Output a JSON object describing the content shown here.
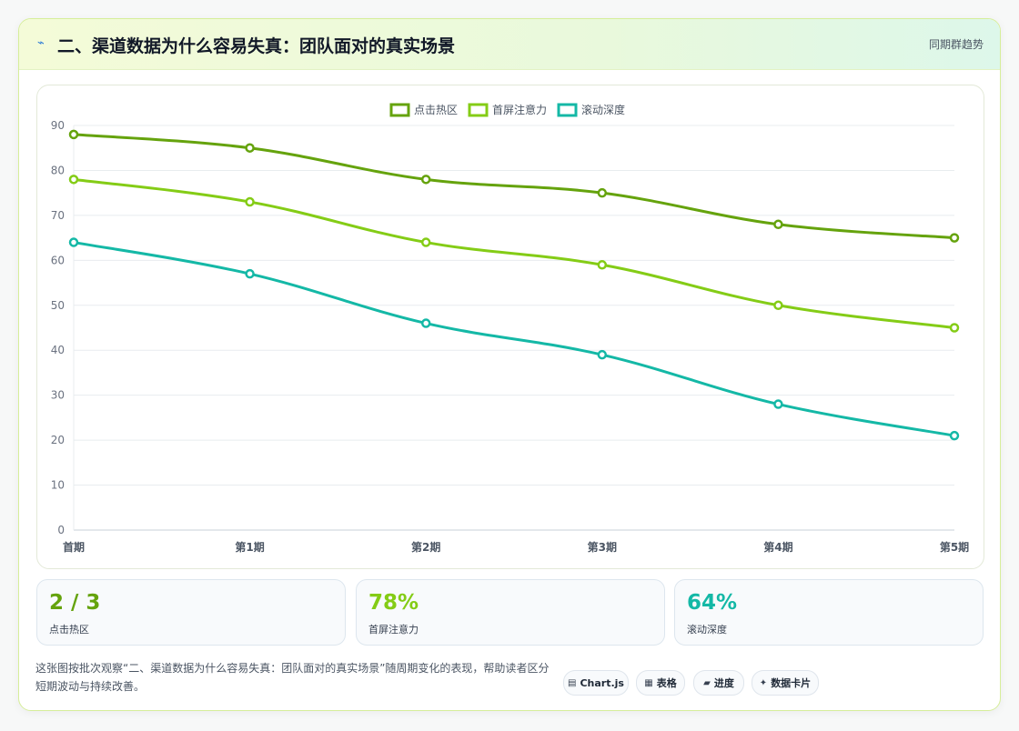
{
  "header": {
    "title_icon": "lightning-icon",
    "title": "二、渠道数据为什么容易失真：团队面对的真实场景",
    "trend_tag": "同期群趋势"
  },
  "chart_data": {
    "type": "line",
    "categories": [
      "首期",
      "第1期",
      "第2期",
      "第3期",
      "第4期",
      "第5期"
    ],
    "series": [
      {
        "name": "点击热区",
        "values": [
          88,
          85,
          78,
          75,
          68,
          65
        ],
        "color": "#65a30d"
      },
      {
        "name": "首屏注意力",
        "values": [
          78,
          73,
          64,
          59,
          50,
          45
        ],
        "color": "#84cc16"
      },
      {
        "name": "滚动深度",
        "values": [
          64,
          57,
          46,
          39,
          28,
          21
        ],
        "color": "#14b8a6"
      }
    ],
    "ylim": [
      0,
      90
    ],
    "yticks": [
      "0",
      "10",
      "20",
      "30",
      "40",
      "50",
      "60",
      "70",
      "80",
      "90"
    ],
    "legend_position": "top-center",
    "grid": true
  },
  "stats": [
    {
      "value": "2 / 3",
      "label": "点击热区",
      "color": "#65a30d"
    },
    {
      "value": "78%",
      "label": "首屏注意力",
      "color": "#84cc16"
    },
    {
      "value": "64%",
      "label": "滚动深度",
      "color": "#14b8a6"
    }
  ],
  "description": "这张图按批次观察“二、渠道数据为什么容易失真：团队面对的真实场景”随周期变化的表现，帮助读者区分短期波动与持续改善。",
  "chips": [
    {
      "icon": "▤",
      "icon_name": "chart-icon",
      "label": "Chart.js"
    },
    {
      "icon": "▦",
      "icon_name": "table-icon",
      "label": "表格"
    },
    {
      "icon": "▰",
      "icon_name": "progress-icon",
      "label": "进度"
    },
    {
      "icon": "✦",
      "icon_name": "sparkle-icon",
      "label": "数据卡片"
    }
  ]
}
